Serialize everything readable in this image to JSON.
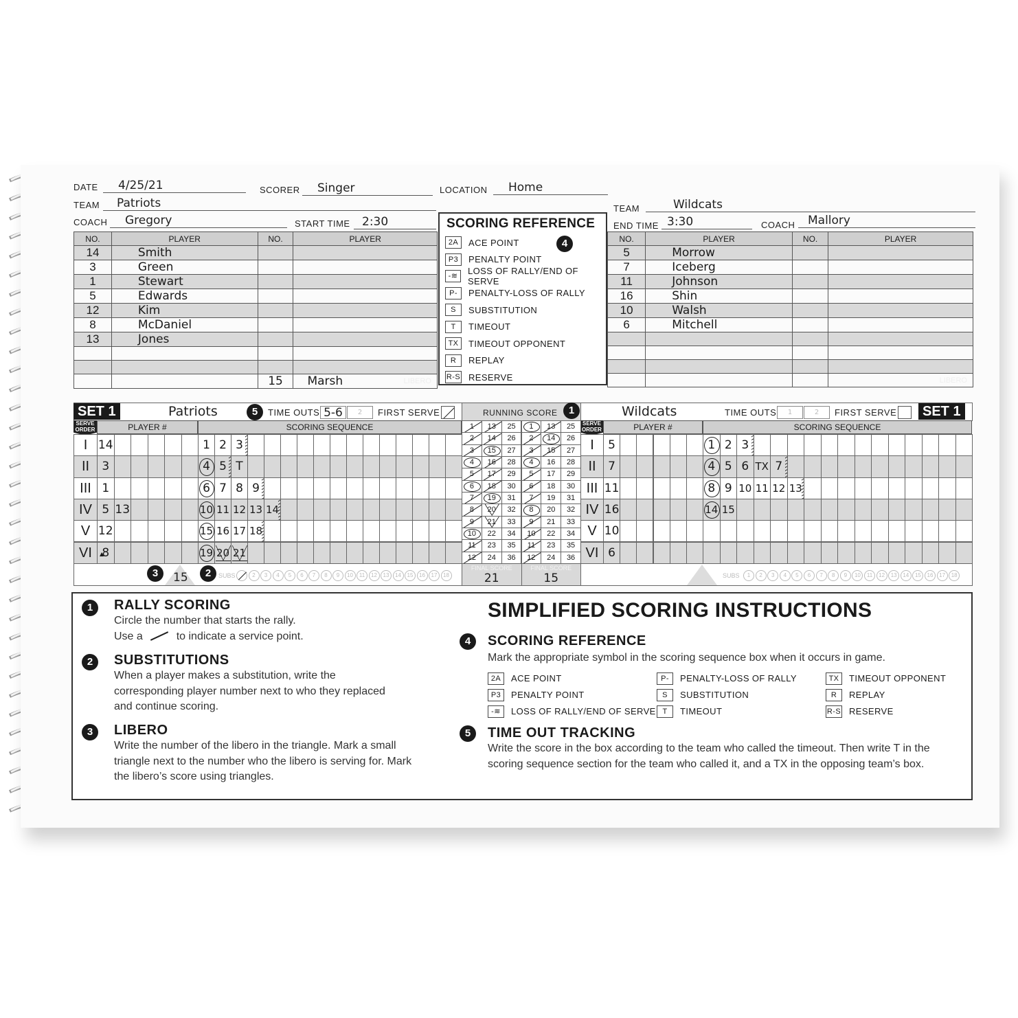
{
  "header": {
    "date_label": "DATE",
    "date": "4/25/21",
    "scorer_label": "SCORER",
    "scorer": "Singer",
    "location_label": "LOCATION",
    "location": "Home",
    "team_label": "TEAM",
    "coach_label": "COACH",
    "start_time_label": "START TIME",
    "start_time": "2:30",
    "end_time_label": "END TIME",
    "end_time": "3:30"
  },
  "home": {
    "team": "Patriots",
    "coach": "Gregory",
    "roster_headers": [
      "NO.",
      "PLAYER",
      "NO.",
      "PLAYER"
    ],
    "roster": [
      [
        "14",
        "Smith"
      ],
      [
        "3",
        "Green"
      ],
      [
        "1",
        "Stewart"
      ],
      [
        "5",
        "Edwards"
      ],
      [
        "12",
        "Kim"
      ],
      [
        "8",
        "McDaniel"
      ],
      [
        "13",
        "Jones"
      ],
      [
        "",
        ""
      ],
      [
        "",
        ""
      ],
      [
        "",
        ""
      ]
    ],
    "libero_no": "15",
    "libero_name": "Marsh",
    "libero_label": "LIBERO"
  },
  "away": {
    "team": "Wildcats",
    "coach": "Mallory",
    "roster": [
      [
        "5",
        "Morrow"
      ],
      [
        "7",
        "Iceberg"
      ],
      [
        "11",
        "Johnson"
      ],
      [
        "16",
        "Shin"
      ],
      [
        "10",
        "Walsh"
      ],
      [
        "6",
        "Mitchell"
      ],
      [
        "",
        ""
      ],
      [
        "",
        ""
      ],
      [
        "",
        ""
      ],
      [
        "",
        ""
      ]
    ],
    "libero_label": "LIBERO"
  },
  "scoring_reference": {
    "title": "SCORING REFERENCE",
    "badge": "4",
    "items": [
      {
        "sym": "2A",
        "label": "ACE POINT"
      },
      {
        "sym": "P3",
        "label": "PENALTY POINT"
      },
      {
        "sym": "-≋",
        "label": "LOSS OF RALLY/END OF SERVE"
      },
      {
        "sym": "P-",
        "label": "PENALTY-LOSS OF RALLY"
      },
      {
        "sym": "S",
        "label": "SUBSTITUTION"
      },
      {
        "sym": "T",
        "label": "TIMEOUT"
      },
      {
        "sym": "TX",
        "label": "TIMEOUT OPPONENT"
      },
      {
        "sym": "R",
        "label": "REPLAY"
      },
      {
        "sym": "R-S",
        "label": "RESERVE"
      }
    ]
  },
  "set": {
    "label": "SET 1",
    "timeouts_label": "TIME OUTS",
    "first_serve_label": "FIRST SERVE",
    "serve_order_label": "SERVE ORDER",
    "player_label": "PLAYER #",
    "sequence_label": "SCORING SEQUENCE",
    "subs_label": "SUBS",
    "running_score_label": "RUNNING SCORE",
    "final_label": "FINAL SCORE",
    "rotation_labels": [
      "I",
      "II",
      "III",
      "IV",
      "V",
      "VI"
    ],
    "home": {
      "team": "Patriots",
      "timeouts": [
        "5-6",
        "2"
      ],
      "first_serve": true,
      "libero": "15",
      "sub_marked": 1,
      "players": [
        [
          "14"
        ],
        [
          "3"
        ],
        [
          "1"
        ],
        [
          "5",
          "13"
        ],
        [
          "12"
        ],
        [
          "8"
        ]
      ],
      "libero_marker_row": 5,
      "sequence": [
        [
          {
            "v": "1"
          },
          {
            "v": "2"
          },
          {
            "v": "3",
            "z": 1
          }
        ],
        [
          {
            "v": "4",
            "m": "circle"
          },
          {
            "v": "5",
            "z": 1
          },
          {
            "v": "T"
          }
        ],
        [
          {
            "v": "6",
            "m": "circle"
          },
          {
            "v": "7"
          },
          {
            "v": "8"
          },
          {
            "v": "9",
            "z": 1
          }
        ],
        [
          {
            "v": "10",
            "m": "circle"
          },
          {
            "v": "11"
          },
          {
            "v": "12"
          },
          {
            "v": "13"
          },
          {
            "v": "14",
            "z": 1
          }
        ],
        [
          {
            "v": "15",
            "m": "circle"
          },
          {
            "v": "16"
          },
          {
            "v": "17"
          },
          {
            "v": "18",
            "z": 1
          }
        ],
        [
          {
            "v": "19",
            "m": "circle"
          },
          {
            "v": "20",
            "m": "tri"
          },
          {
            "v": "21",
            "m": "tri"
          }
        ]
      ],
      "score": 21,
      "circled": [
        4,
        6,
        10,
        15,
        19
      ],
      "triangles": [
        20,
        21
      ]
    },
    "away": {
      "team": "Wildcats",
      "timeouts": [
        "1",
        "2"
      ],
      "first_serve": false,
      "players": [
        [
          "5"
        ],
        [
          "7"
        ],
        [
          "11"
        ],
        [
          "16"
        ],
        [
          "10"
        ],
        [
          "6"
        ]
      ],
      "sequence": [
        [
          {
            "v": "1",
            "m": "circle"
          },
          {
            "v": "2"
          },
          {
            "v": "3",
            "z": 1
          }
        ],
        [
          {
            "v": "4",
            "m": "circle"
          },
          {
            "v": "5"
          },
          {
            "v": "6"
          },
          {
            "v": "TX"
          },
          {
            "v": "7",
            "z": 1
          }
        ],
        [
          {
            "v": "8",
            "m": "circle"
          },
          {
            "v": "9"
          },
          {
            "v": "10"
          },
          {
            "v": "11"
          },
          {
            "v": "12"
          },
          {
            "v": "13",
            "z": 1
          }
        ],
        [
          {
            "v": "14",
            "m": "circle"
          },
          {
            "v": "15"
          }
        ],
        [],
        []
      ],
      "score": 15,
      "circled": [
        1,
        14,
        8,
        4
      ],
      "triangles": []
    },
    "badges": {
      "rally": "1",
      "subs": "2",
      "libero": "3",
      "timeouts": "5"
    }
  },
  "instructions": {
    "title": "SIMPLIFIED SCORING INSTRUCTIONS",
    "s1": {
      "n": "1",
      "h": "RALLY SCORING",
      "p1": "Circle the number that starts the rally.",
      "p2a": "Use a",
      "p2b": "to indicate a service point."
    },
    "s2": {
      "n": "2",
      "h": "SUBSTITUTIONS",
      "p": "When a player makes a substitution, write the corresponding player number next to who they replaced and continue scoring."
    },
    "s3": {
      "n": "3",
      "h": "LIBERO",
      "p": "Write the number of the libero in the triangle. Mark a small triangle next to the number who the libero is serving for. Mark the libero’s score using triangles."
    },
    "s4": {
      "n": "4",
      "h": "SCORING REFERENCE",
      "p": "Mark the appropriate symbol in the scoring sequence box when it occurs in game.",
      "items": [
        {
          "sym": "2A",
          "label": "ACE POINT"
        },
        {
          "sym": "P3",
          "label": "PENALTY POINT"
        },
        {
          "sym": "-≋",
          "label": "LOSS OF RALLY/END OF SERVE"
        },
        {
          "sym": "P-",
          "label": "PENALTY-LOSS OF RALLY"
        },
        {
          "sym": "S",
          "label": "SUBSTITUTION"
        },
        {
          "sym": "T",
          "label": "TIMEOUT"
        },
        {
          "sym": "TX",
          "label": "TIMEOUT OPPONENT"
        },
        {
          "sym": "R",
          "label": "REPLAY"
        },
        {
          "sym": "R-S",
          "label": "RESERVE"
        }
      ]
    },
    "s5": {
      "n": "5",
      "h": "TIME OUT TRACKING",
      "p": "Write the score in the box according to the team who called the timeout. Then write T in the scoring sequence section for the team who called it, and a TX in the opposing team’s box."
    }
  },
  "colors": {
    "ink": "#1a1a1a",
    "shade": "#d9d9d9",
    "header_shade": "#cfcfcf"
  }
}
